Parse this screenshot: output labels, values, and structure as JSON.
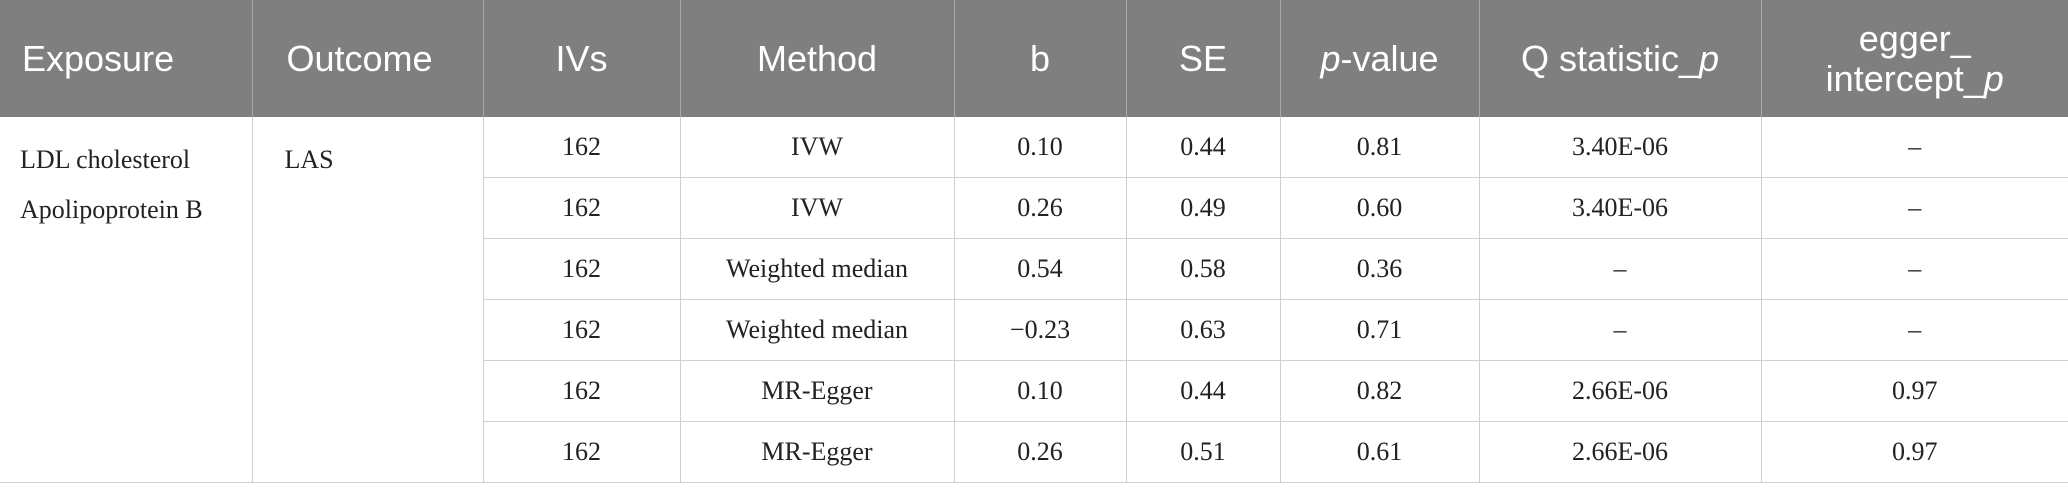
{
  "headers": {
    "exposure": "Exposure",
    "outcome": "Outcome",
    "ivs": "IVs",
    "method": "Method",
    "b": "b",
    "se": "SE",
    "pvalue_italic": "p",
    "pvalue_rest": "-value",
    "q_statistic_main": "Q statistic_",
    "q_statistic_italic": "p",
    "egger_line1": "egger_",
    "egger_line2_main": "intercept_",
    "egger_line2_italic": "p"
  },
  "exposures": [
    "LDL cholesterol",
    "Apolipoprotein B"
  ],
  "outcome": "LAS",
  "rows": [
    {
      "ivs": "162",
      "method": "IVW",
      "b": "0.10",
      "se": "0.44",
      "p": "0.81",
      "q": "3.40E-06",
      "egger": "–"
    },
    {
      "ivs": "162",
      "method": "IVW",
      "b": "0.26",
      "se": "0.49",
      "p": "0.60",
      "q": "3.40E-06",
      "egger": "–"
    },
    {
      "ivs": "162",
      "method": "Weighted median",
      "b": "0.54",
      "se": "0.58",
      "p": "0.36",
      "q": "–",
      "egger": "–"
    },
    {
      "ivs": "162",
      "method": "Weighted median",
      "b": "−0.23",
      "se": "0.63",
      "p": "0.71",
      "q": "–",
      "egger": "–"
    },
    {
      "ivs": "162",
      "method": "MR-Egger",
      "b": "0.10",
      "se": "0.44",
      "p": "0.82",
      "q": "2.66E-06",
      "egger": "0.97"
    },
    {
      "ivs": "162",
      "method": "MR-Egger",
      "b": "0.26",
      "se": "0.51",
      "p": "0.61",
      "q": "2.66E-06",
      "egger": "0.97"
    }
  ]
}
